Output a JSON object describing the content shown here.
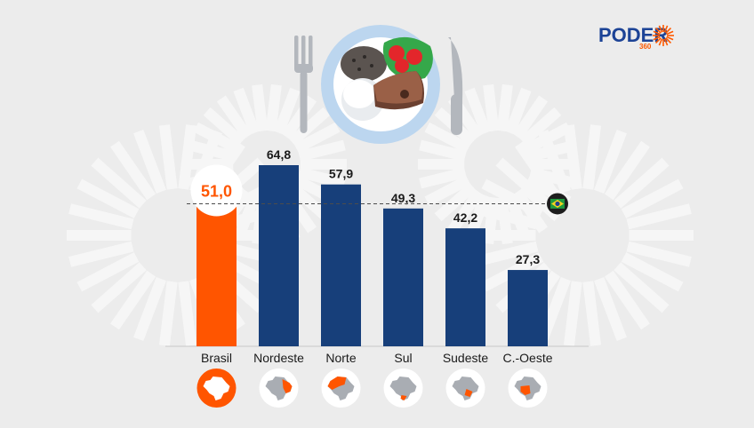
{
  "brand": {
    "name": "PODER",
    "sub": "360",
    "color": "#1c4396",
    "accent": "#ff5a00"
  },
  "colors": {
    "background": "#ececec",
    "highlight": "#ff5500",
    "bar": "#173f7a",
    "text": "#1a1a1a",
    "map_gray": "#a9adb3"
  },
  "icons": [
    "fork-icon",
    "food-plate-icon",
    "knife-icon",
    "brazil-flag-icon",
    "brazil-map-icon"
  ],
  "chart_data": {
    "type": "bar",
    "title": "",
    "xlabel": "",
    "ylabel": "",
    "categories": [
      "Brasil",
      "Nordeste",
      "Norte",
      "Sul",
      "Sudeste",
      "C.-Oeste"
    ],
    "values": [
      51.0,
      64.8,
      57.9,
      49.3,
      42.2,
      27.3
    ],
    "value_labels": [
      "51,0",
      "64,8",
      "57,9",
      "49,3",
      "42,2",
      "27,3"
    ],
    "highlight_category": "Brasil",
    "reference_line": {
      "value": 51.0,
      "style": "dashed",
      "marker": "brazil-flag-icon"
    },
    "ylim": [
      0,
      70
    ],
    "grid": false,
    "legend": "none"
  }
}
